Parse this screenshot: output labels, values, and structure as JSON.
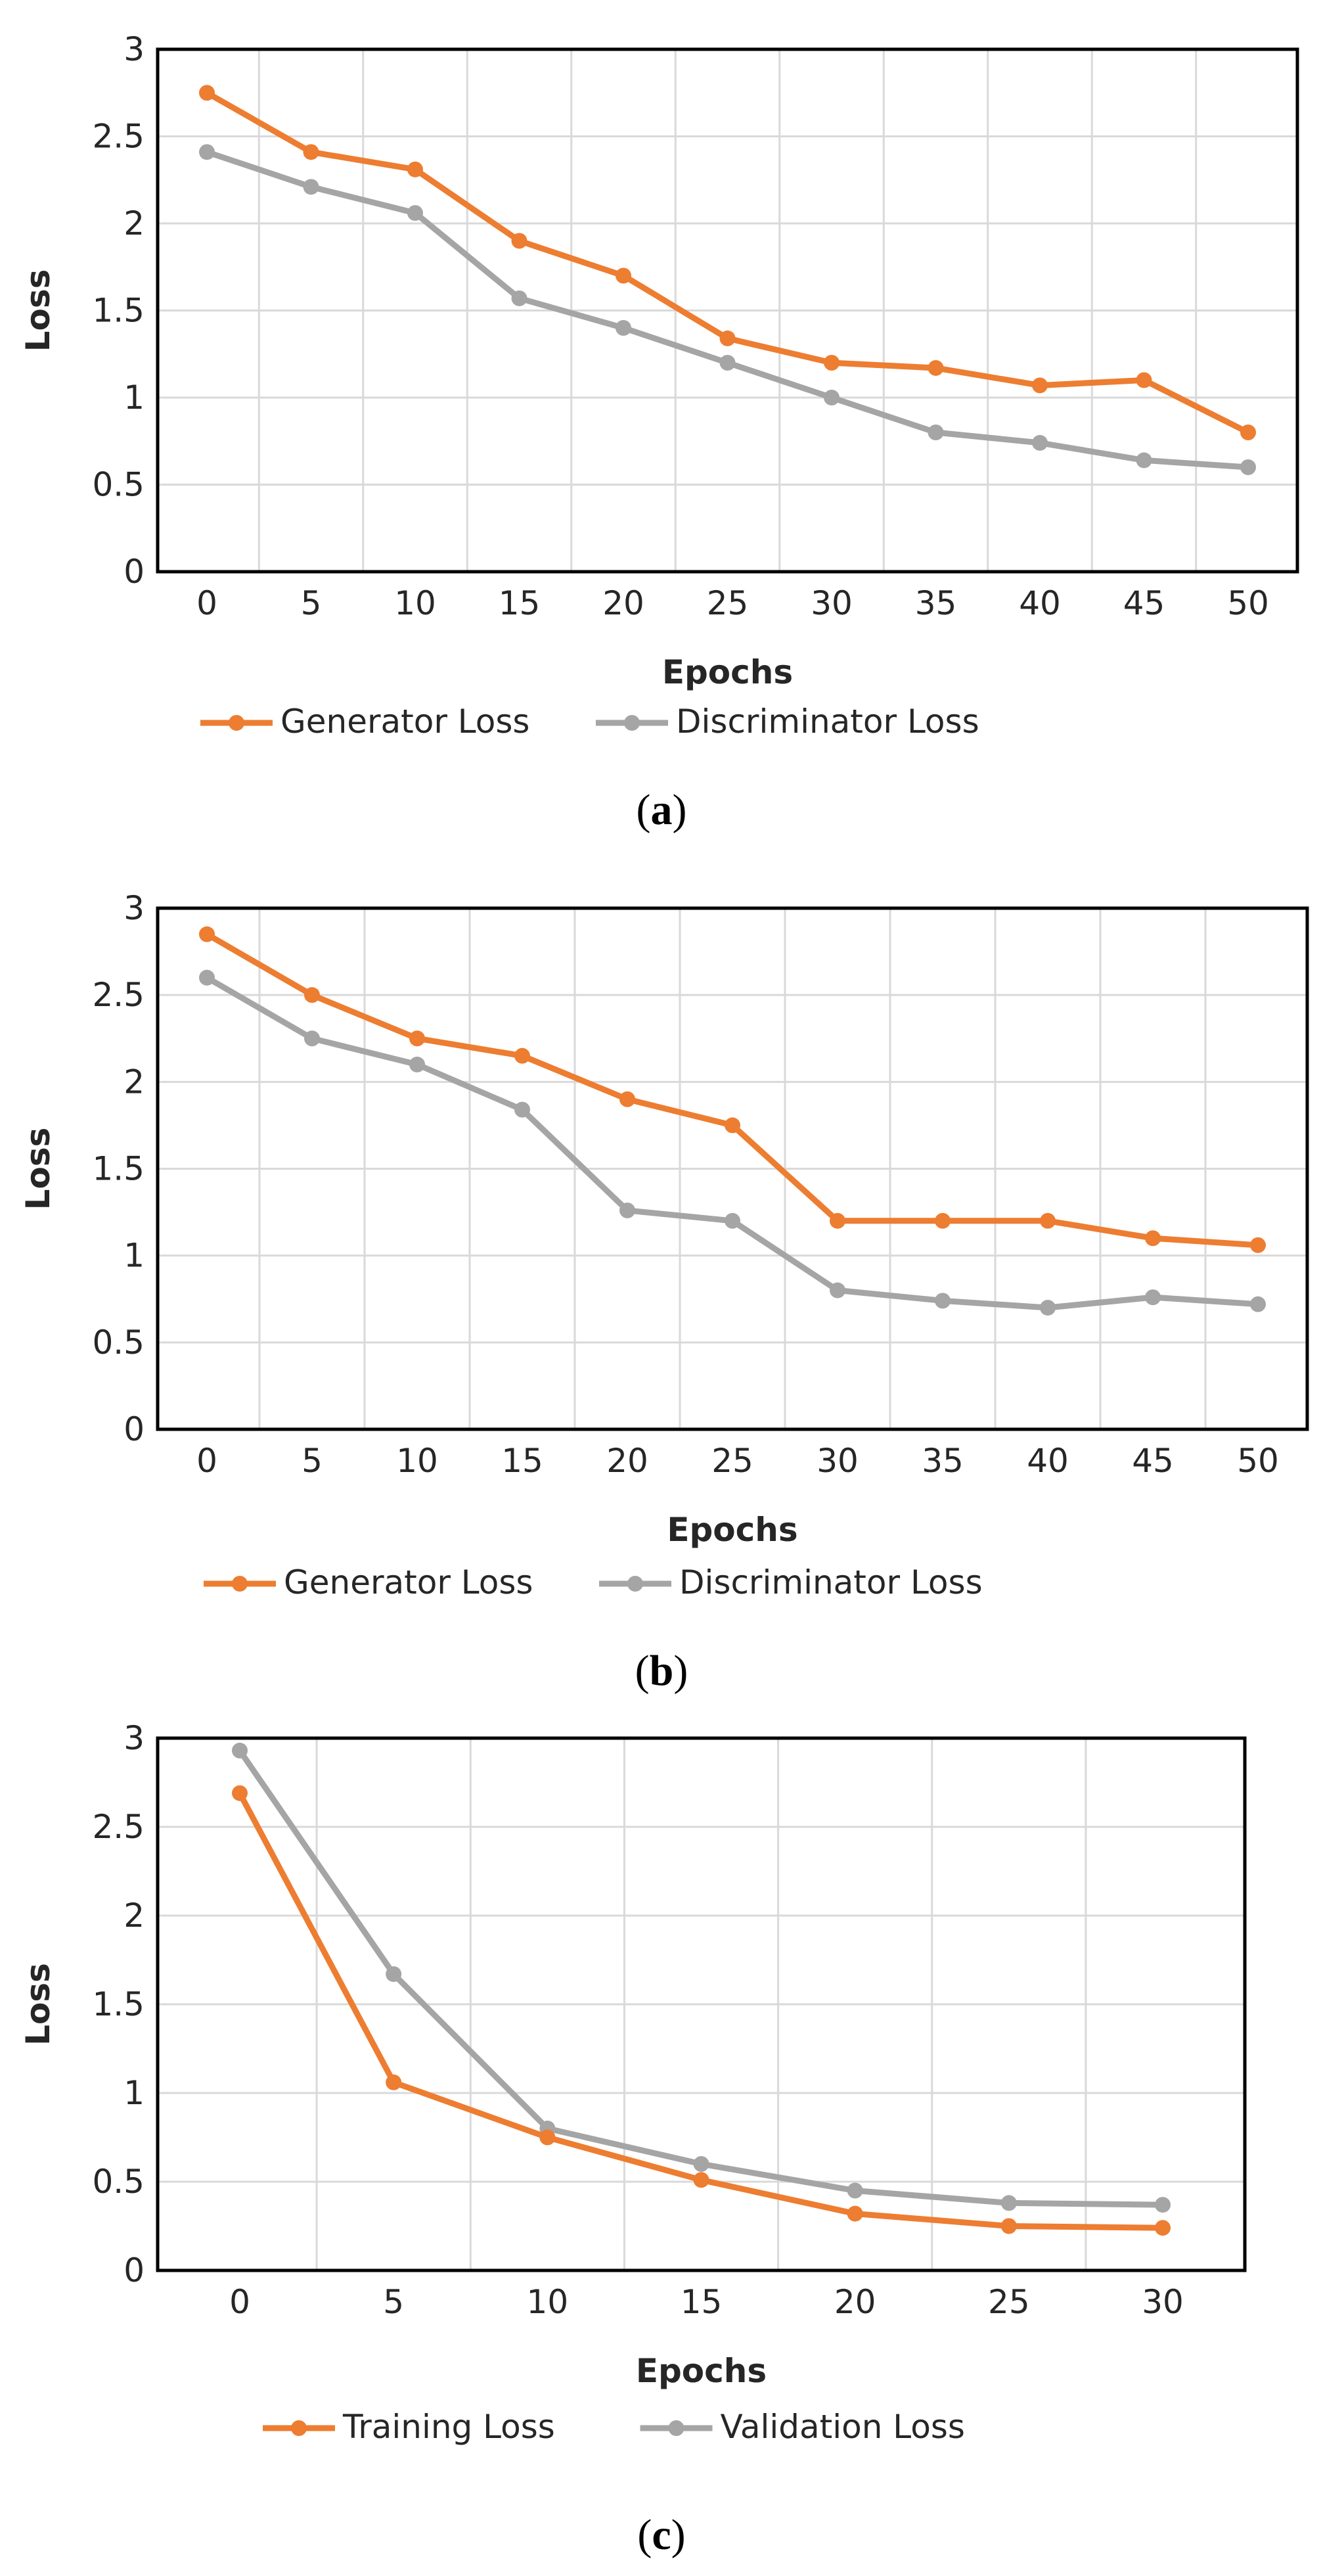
{
  "colors": {
    "orange": "#ED7D31",
    "gray": "#A5A5A5",
    "grid": "#D9D9D9",
    "frame": "#000000"
  },
  "captions": [
    {
      "open": "(",
      "letter": "a",
      "close": ")"
    },
    {
      "open": "(",
      "letter": "b",
      "close": ")"
    },
    {
      "open": "(",
      "letter": "c",
      "close": ")"
    }
  ],
  "chart_data": [
    {
      "type": "line",
      "categories": [
        "0",
        "5",
        "10",
        "15",
        "20",
        "25",
        "30",
        "35",
        "40",
        "45",
        "50"
      ],
      "series": [
        {
          "name": "Generator Loss",
          "color": "#ED7D31",
          "values": [
            2.75,
            2.41,
            2.31,
            1.9,
            1.7,
            1.34,
            1.2,
            1.17,
            1.07,
            1.1,
            0.8
          ]
        },
        {
          "name": "Discriminator Loss",
          "color": "#A5A5A5",
          "values": [
            2.41,
            2.21,
            2.06,
            1.57,
            1.4,
            1.2,
            1.0,
            0.8,
            0.74,
            0.64,
            0.6
          ]
        }
      ],
      "xlabel": "Epochs",
      "ylabel": "Loss",
      "ylim": [
        0,
        3
      ],
      "yticks": [
        "0",
        "0.5",
        "1",
        "1.5",
        "2",
        "2.5",
        "3"
      ],
      "grid": true,
      "legend": "bottom"
    },
    {
      "type": "line",
      "categories": [
        "0",
        "5",
        "10",
        "15",
        "20",
        "25",
        "30",
        "35",
        "40",
        "45",
        "50"
      ],
      "series": [
        {
          "name": "Generator Loss",
          "color": "#ED7D31",
          "values": [
            2.85,
            2.5,
            2.25,
            2.15,
            1.9,
            1.75,
            1.2,
            1.2,
            1.2,
            1.1,
            1.06
          ]
        },
        {
          "name": "Discriminator Loss",
          "color": "#A5A5A5",
          "values": [
            2.6,
            2.25,
            2.1,
            1.84,
            1.26,
            1.2,
            0.8,
            0.74,
            0.7,
            0.76,
            0.72
          ]
        }
      ],
      "xlabel": "Epochs",
      "ylabel": "Loss",
      "ylim": [
        0,
        3
      ],
      "yticks": [
        "0",
        "0.5",
        "1",
        "1.5",
        "2",
        "2.5",
        "3"
      ],
      "grid": true,
      "legend": "bottom"
    },
    {
      "type": "line",
      "categories": [
        "0",
        "5",
        "10",
        "15",
        "20",
        "25",
        "30"
      ],
      "series": [
        {
          "name": "Training Loss",
          "color": "#ED7D31",
          "values": [
            2.69,
            1.06,
            0.75,
            0.51,
            0.32,
            0.25,
            0.24
          ]
        },
        {
          "name": "Validation Loss",
          "color": "#A5A5A5",
          "values": [
            2.93,
            1.67,
            0.8,
            0.6,
            0.45,
            0.38,
            0.37
          ]
        }
      ],
      "xlabel": "Epochs",
      "ylabel": "Loss",
      "ylim": [
        0,
        3
      ],
      "yticks": [
        "0",
        "0.5",
        "1",
        "1.5",
        "2",
        "2.5",
        "3"
      ],
      "grid": true,
      "legend": "bottom"
    }
  ]
}
